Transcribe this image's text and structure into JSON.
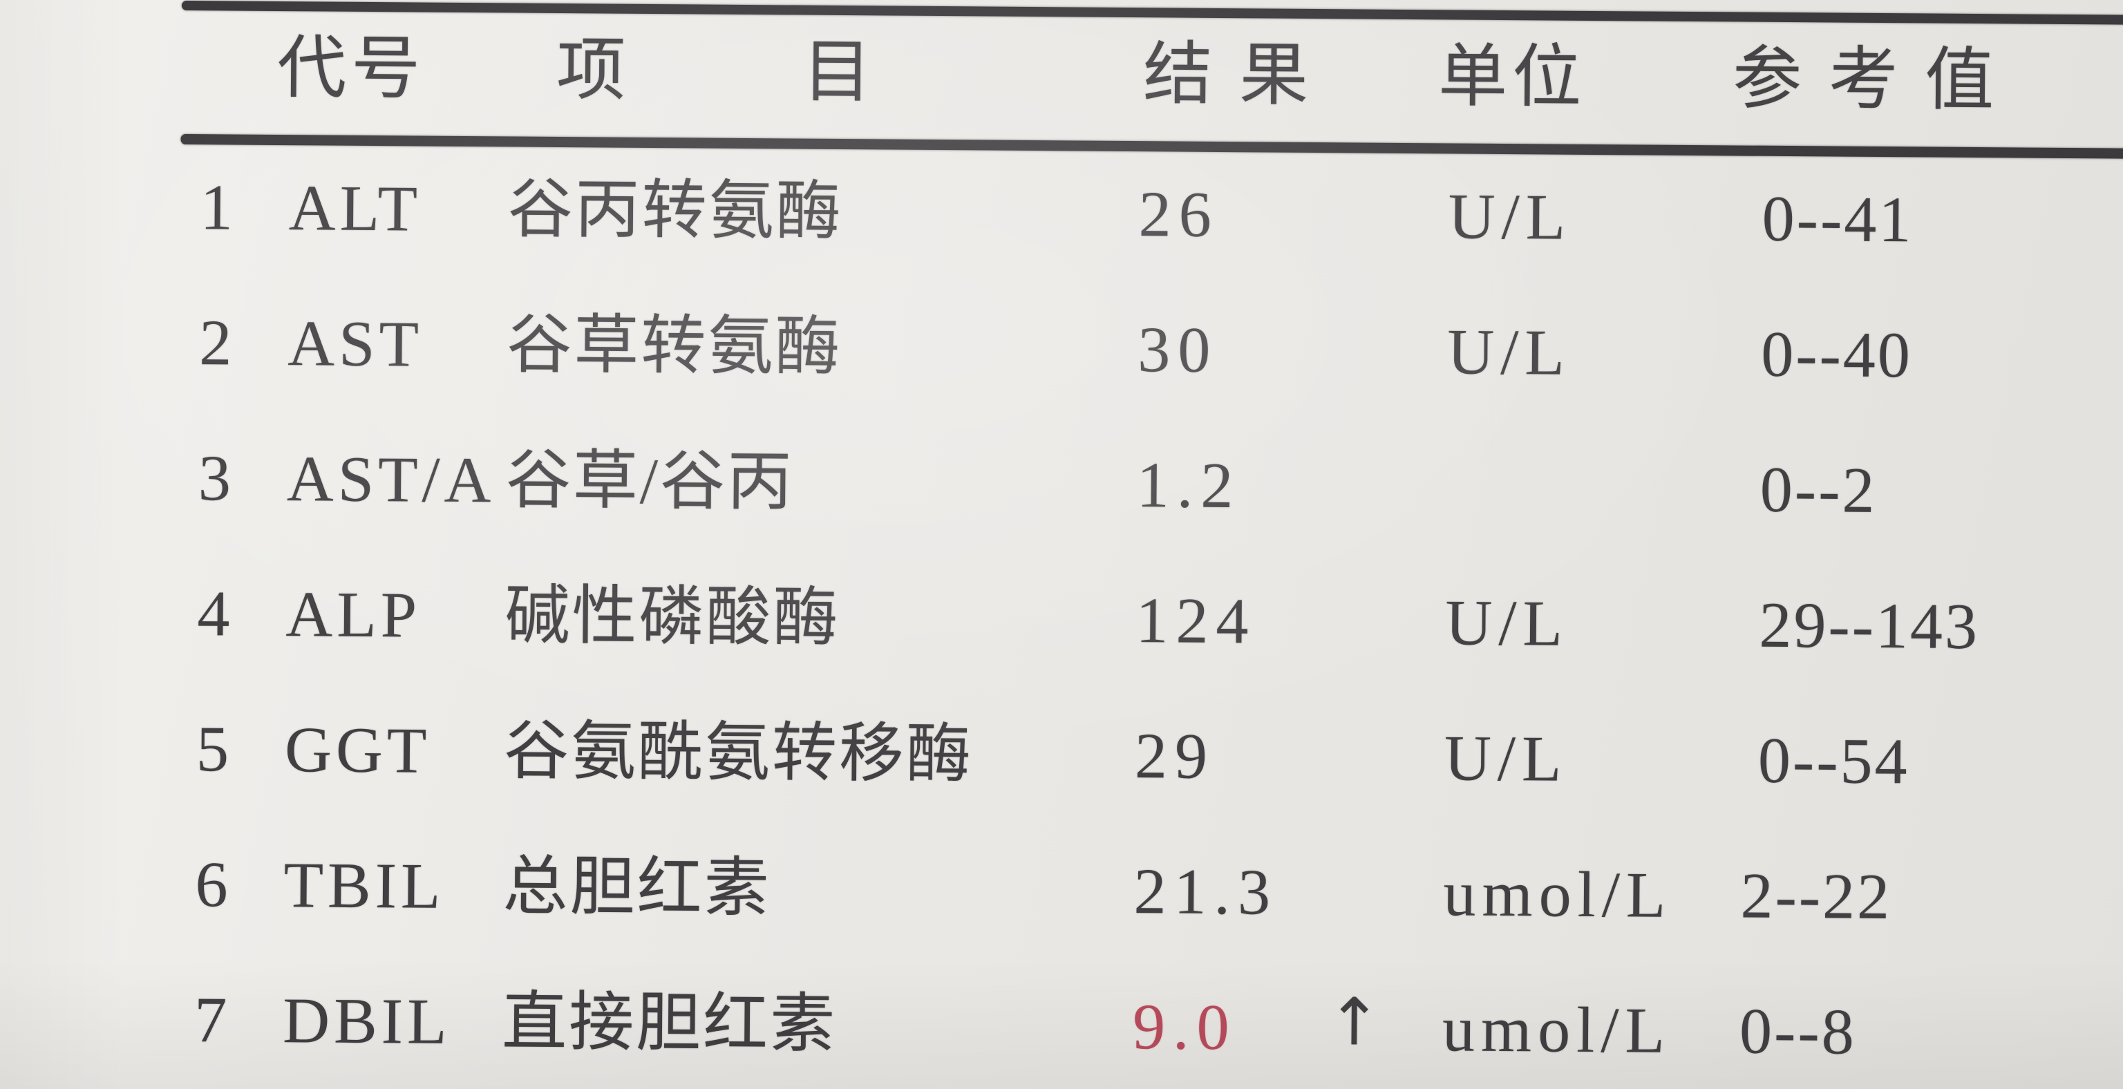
{
  "report": {
    "headers": [
      "代号",
      "项",
      "目",
      "结 果",
      "单位",
      "参 考 值"
    ],
    "rows": [
      {
        "num": "1",
        "code": "ALT",
        "name": "谷丙转氨酶",
        "result": "26",
        "flag": "",
        "unit": "U/L",
        "ref": "0--41",
        "abnormal": false
      },
      {
        "num": "2",
        "code": "AST",
        "name": "谷草转氨酶",
        "result": "30",
        "flag": "",
        "unit": "U/L",
        "ref": "0--40",
        "abnormal": false
      },
      {
        "num": "3",
        "code": "AST/A",
        "name": "谷草/谷丙",
        "result": "1.2",
        "flag": "",
        "unit": "",
        "ref": "0--2",
        "abnormal": false
      },
      {
        "num": "4",
        "code": "ALP",
        "name": "碱性磷酸酶",
        "result": "124",
        "flag": "",
        "unit": "U/L",
        "ref": "29--143",
        "abnormal": false
      },
      {
        "num": "5",
        "code": "GGT",
        "name": "谷氨酰氨转移酶",
        "result": "29",
        "flag": "",
        "unit": "U/L",
        "ref": "0--54",
        "abnormal": false
      },
      {
        "num": "6",
        "code": "TBIL",
        "name": "总胆红素",
        "result": "21.3",
        "flag": "",
        "unit": "umol/L",
        "ref": "2--22",
        "abnormal": false
      },
      {
        "num": "7",
        "code": "DBIL",
        "name": "直接胆红素",
        "result": "9.0",
        "flag": "↑",
        "unit": "umol/L",
        "ref": "0--8",
        "abnormal": true
      }
    ],
    "colors": {
      "paper": "#eae8e4",
      "ink": "#413f41",
      "rule": "#3c3a3c",
      "abnormal_red": "#b84b5c"
    }
  }
}
